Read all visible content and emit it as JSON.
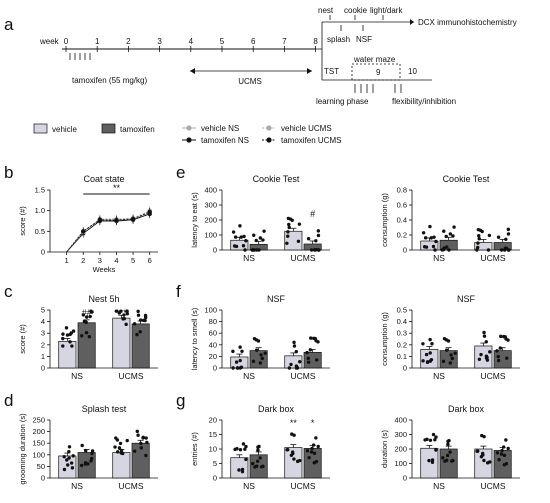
{
  "panel_labels": [
    "a",
    "b",
    "c",
    "d",
    "e",
    "f",
    "g"
  ],
  "colors": {
    "vehicle": "#d6d6e2",
    "tamoxifen": "#5f5f5f",
    "ink": "#111111",
    "ns_line": "#9a9a9a"
  },
  "timeline": {
    "week_label": "week",
    "weeks": [
      "0",
      "1",
      "2",
      "3",
      "4",
      "5",
      "6",
      "7",
      "8"
    ],
    "tamoxifen_label": "tamoxifen (55 mg/kg)",
    "ucms_label": "UCMS",
    "branch_top": {
      "nest": "nest",
      "cookie": "cookie",
      "light_dark": "light/dark",
      "splash": "splash",
      "nsf": "NSF",
      "dcx": "DCX immunohistochemistry"
    },
    "branch_bottom": {
      "tst": "TST",
      "water_maze": "water maze",
      "week9": "9",
      "week10": "10",
      "learning": "learning phase",
      "flex": "flexibility/inhibition"
    }
  },
  "legend": {
    "vehicle": "vehicle",
    "tamoxifen": "tamoxifen",
    "vehicle_ns": "vehicle NS",
    "tamoxifen_ns": "tamoxifen NS",
    "vehicle_ucms": "vehicle UCMS",
    "tamoxifen_ucms": "tamoxifen UCMS"
  },
  "chart_data": [
    {
      "id": "b",
      "type": "line",
      "title": "Coat state",
      "xlabel": "Weeks",
      "ylabel": "score (#)",
      "x": [
        1,
        2,
        3,
        4,
        5,
        6
      ],
      "xlim": [
        0,
        6.5
      ],
      "ylim": [
        0,
        1.5
      ],
      "yticks": [
        "0",
        "0.5",
        "1.0",
        "1.5"
      ],
      "series": [
        {
          "name": "vehicle NS",
          "values": [
            0,
            0.5,
            0.78,
            0.78,
            0.8,
            0.95
          ]
        },
        {
          "name": "tamoxifen NS",
          "values": [
            0,
            0.45,
            0.75,
            0.75,
            0.78,
            0.92
          ]
        },
        {
          "name": "vehicle UCMS",
          "values": [
            0,
            0.48,
            0.8,
            0.8,
            0.82,
            1.0
          ]
        },
        {
          "name": "tamoxifen UCMS",
          "values": [
            0,
            0.5,
            0.78,
            0.77,
            0.8,
            0.97
          ]
        }
      ],
      "significance": "**"
    },
    {
      "id": "c",
      "type": "bar",
      "title": "Nest 5h",
      "ylabel": "score (#)",
      "categories": [
        "NS",
        "UCMS"
      ],
      "ylim": [
        0,
        5
      ],
      "yticks": [
        "0",
        "1",
        "2",
        "3",
        "4",
        "5"
      ],
      "series": [
        {
          "name": "vehicle",
          "values": [
            2.3,
            4.3
          ]
        },
        {
          "name": "tamoxifen",
          "values": [
            3.9,
            3.8
          ]
        }
      ],
      "annotations": [
        "##",
        "***"
      ]
    },
    {
      "id": "d",
      "type": "bar",
      "title": "Splash test",
      "ylabel": "grooming duration (s)",
      "categories": [
        "NS",
        "UCMS"
      ],
      "ylim": [
        0,
        250
      ],
      "yticks": [
        "0",
        "50",
        "100",
        "150",
        "200",
        "250"
      ],
      "series": [
        {
          "name": "vehicle",
          "values": [
            95,
            110
          ]
        },
        {
          "name": "tamoxifen",
          "values": [
            110,
            150
          ]
        }
      ]
    },
    {
      "id": "e1",
      "type": "bar",
      "title": "Cookie Test",
      "ylabel": "latency to eat (s)",
      "categories": [
        "NS",
        "UCMS"
      ],
      "ylim": [
        0,
        400
      ],
      "yticks": [
        "0",
        "100",
        "200",
        "300",
        "400"
      ],
      "series": [
        {
          "name": "vehicle",
          "values": [
            65,
            125
          ]
        },
        {
          "name": "tamoxifen",
          "values": [
            38,
            40
          ]
        }
      ],
      "annotations": [
        "#"
      ]
    },
    {
      "id": "e2",
      "type": "bar",
      "title": "Cookie Test",
      "ylabel": "consumption (g)",
      "categories": [
        "NS",
        "UCMS"
      ],
      "ylim": [
        0,
        0.8
      ],
      "yticks": [
        "0",
        "0.2",
        "0.4",
        "0.6",
        "0.8"
      ],
      "series": [
        {
          "name": "vehicle",
          "values": [
            0.12,
            0.1
          ]
        },
        {
          "name": "tamoxifen",
          "values": [
            0.13,
            0.1
          ]
        }
      ]
    },
    {
      "id": "f1",
      "type": "bar",
      "title": "NSF",
      "ylabel": "latency to smell (s)",
      "categories": [
        "NS",
        "UCMS"
      ],
      "ylim": [
        0,
        100
      ],
      "yticks": [
        "0",
        "20",
        "40",
        "60",
        "80",
        "100"
      ],
      "series": [
        {
          "name": "vehicle",
          "values": [
            19,
            21
          ]
        },
        {
          "name": "tamoxifen",
          "values": [
            30,
            27
          ]
        }
      ]
    },
    {
      "id": "f2",
      "type": "bar",
      "title": "NSF",
      "ylabel": "consumption (g)",
      "categories": [
        "NS",
        "UCMS"
      ],
      "ylim": [
        0,
        0.5
      ],
      "yticks": [
        "0",
        "0.1",
        "0.2",
        "0.3",
        "0.4",
        "0.5"
      ],
      "series": [
        {
          "name": "vehicle",
          "values": [
            0.16,
            0.19
          ]
        },
        {
          "name": "tamoxifen",
          "values": [
            0.15,
            0.15
          ]
        }
      ]
    },
    {
      "id": "g1",
      "type": "bar",
      "title": "Dark box",
      "ylabel": "entries (#)",
      "categories": [
        "NS",
        "UCMS"
      ],
      "ylim": [
        0,
        20
      ],
      "yticks": [
        "0",
        "5",
        "10",
        "15",
        "20"
      ],
      "series": [
        {
          "name": "vehicle",
          "values": [
            7,
            10.5
          ]
        },
        {
          "name": "tamoxifen",
          "values": [
            8,
            10.2
          ]
        }
      ],
      "annotations": [
        "**",
        "*"
      ]
    },
    {
      "id": "g2",
      "type": "bar",
      "title": "Dark box",
      "ylabel": "duration (s)",
      "categories": [
        "NS",
        "UCMS"
      ],
      "ylim": [
        0,
        400
      ],
      "yticks": [
        "0",
        "100",
        "200",
        "300",
        "400"
      ],
      "series": [
        {
          "name": "vehicle",
          "values": [
            205,
            200
          ]
        },
        {
          "name": "tamoxifen",
          "values": [
            200,
            190
          ]
        }
      ]
    }
  ]
}
